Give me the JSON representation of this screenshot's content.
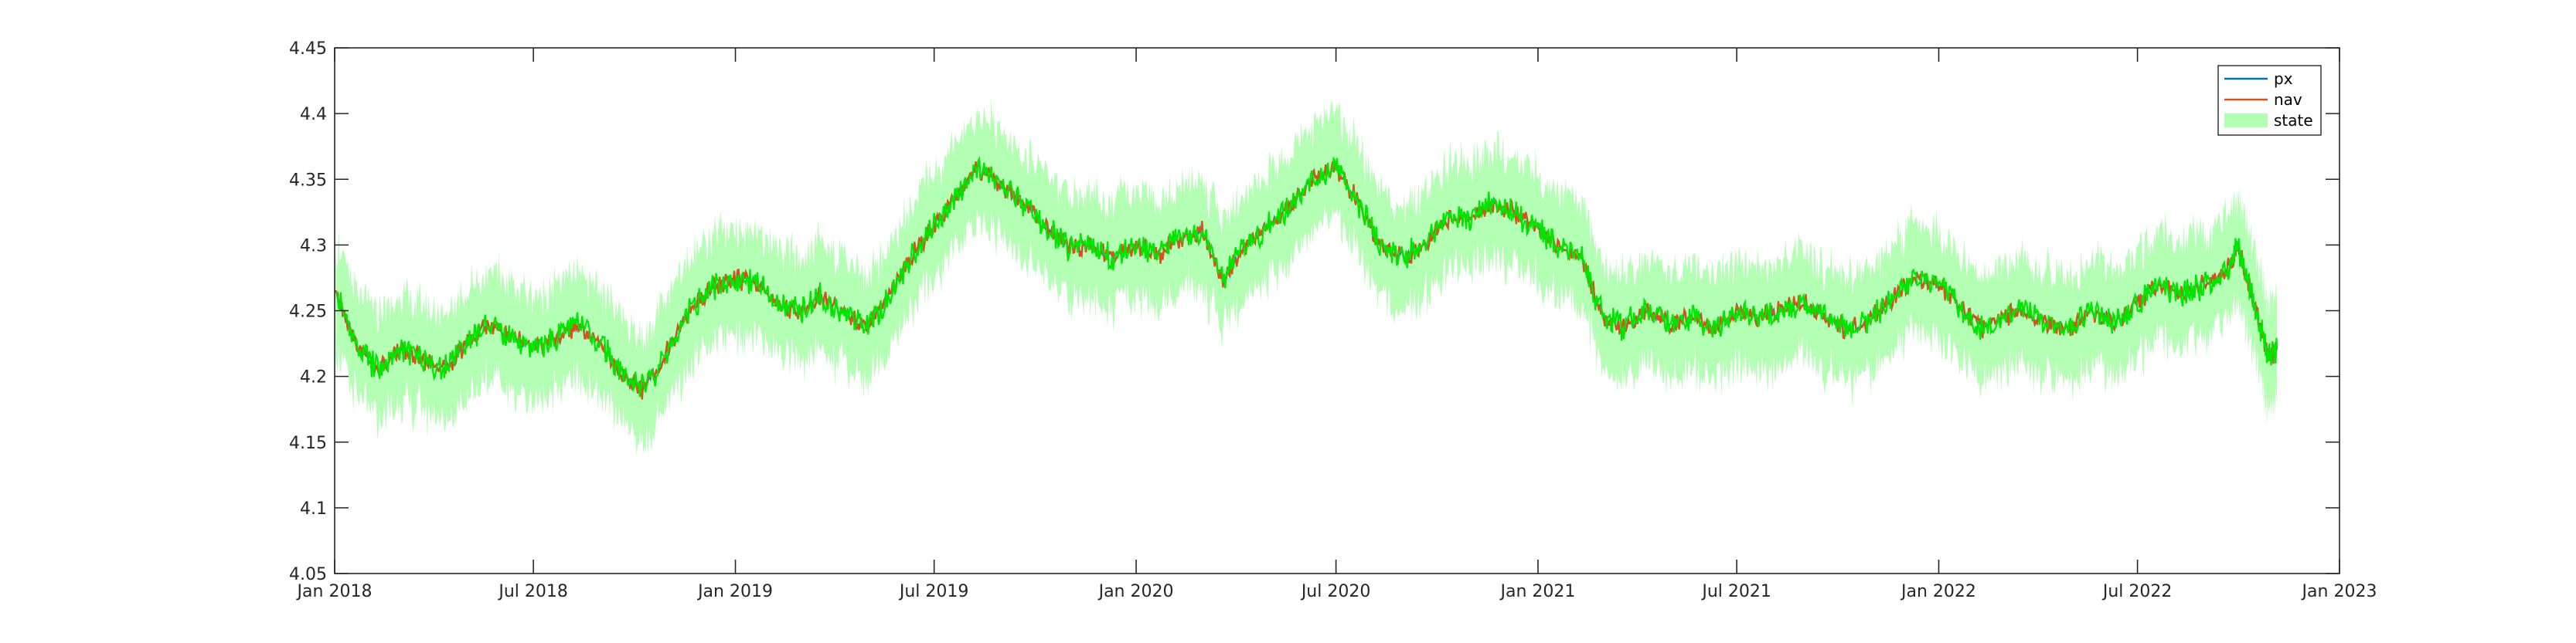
{
  "chart_data": {
    "type": "line",
    "title": "",
    "xlabel": "",
    "ylabel": "",
    "xlim": [
      "2018-01-01",
      "2023-01-01"
    ],
    "ylim": [
      4.05,
      4.45
    ],
    "grid": false,
    "legend_position": "top-right",
    "x_ticks": [
      "2018-01-01",
      "2018-07-01",
      "2019-01-01",
      "2019-07-01",
      "2020-01-01",
      "2020-07-01",
      "2021-01-01",
      "2021-07-01",
      "2022-01-01",
      "2022-07-01",
      "2023-01-01"
    ],
    "x_tick_labels": [
      "Jan 2018",
      "Jul 2018",
      "Jan 2019",
      "Jul 2019",
      "Jan 2020",
      "Jul 2020",
      "Jan 2021",
      "Jul 2021",
      "Jan 2022",
      "Jul 2022",
      "Jan 2023"
    ],
    "y_ticks": [
      4.05,
      4.1,
      4.15,
      4.2,
      4.25,
      4.3,
      4.35,
      4.4,
      4.45
    ],
    "y_tick_labels": [
      "4.05",
      "4.1",
      "4.15",
      "4.2",
      "4.25",
      "4.3",
      "4.35",
      "4.4",
      "4.45"
    ],
    "series": [
      {
        "name": "px",
        "kind": "line",
        "color": "#0072BD"
      },
      {
        "name": "nav",
        "kind": "line",
        "color": "#D95319"
      },
      {
        "name": "state",
        "kind": "line+band",
        "color": "#00E600",
        "band_color": "#B3FFB3",
        "band_halfwidth": 0.04
      }
    ],
    "x": [
      "2018-01-02",
      "2018-01-20",
      "2018-02-10",
      "2018-03-01",
      "2018-03-20",
      "2018-04-10",
      "2018-05-01",
      "2018-05-20",
      "2018-06-10",
      "2018-07-01",
      "2018-07-20",
      "2018-08-10",
      "2018-09-01",
      "2018-09-20",
      "2018-10-10",
      "2018-11-01",
      "2018-11-20",
      "2018-12-10",
      "2019-01-01",
      "2019-01-20",
      "2019-02-10",
      "2019-03-01",
      "2019-03-20",
      "2019-04-10",
      "2019-05-01",
      "2019-05-20",
      "2019-06-10",
      "2019-07-01",
      "2019-07-20",
      "2019-08-10",
      "2019-09-01",
      "2019-09-20",
      "2019-10-10",
      "2019-11-01",
      "2019-11-20",
      "2019-12-10",
      "2020-01-01",
      "2020-01-20",
      "2020-02-10",
      "2020-03-01",
      "2020-03-20",
      "2020-04-10",
      "2020-05-01",
      "2020-05-20",
      "2020-06-10",
      "2020-07-01",
      "2020-07-20",
      "2020-08-10",
      "2020-09-01",
      "2020-09-20",
      "2020-10-10",
      "2020-11-01",
      "2020-11-20",
      "2020-12-10",
      "2021-01-01",
      "2021-01-20",
      "2021-02-10",
      "2021-03-01",
      "2021-03-20",
      "2021-04-10",
      "2021-05-01",
      "2021-05-20",
      "2021-06-10",
      "2021-07-01",
      "2021-07-20",
      "2021-08-10",
      "2021-09-01",
      "2021-09-20",
      "2021-10-10",
      "2021-11-01",
      "2021-11-20",
      "2021-12-10",
      "2022-01-01",
      "2022-01-20",
      "2022-02-10",
      "2022-03-01",
      "2022-03-20",
      "2022-04-10",
      "2022-05-01",
      "2022-05-20",
      "2022-06-10",
      "2022-07-01",
      "2022-07-20",
      "2022-08-10",
      "2022-09-01",
      "2022-09-20",
      "2022-10-01",
      "2022-10-10",
      "2022-10-20",
      "2022-10-28",
      "2022-11-05"
    ],
    "values": [
      4.262,
      4.225,
      4.205,
      4.22,
      4.215,
      4.205,
      4.225,
      4.24,
      4.23,
      4.222,
      4.228,
      4.24,
      4.225,
      4.2,
      4.19,
      4.22,
      4.25,
      4.268,
      4.275,
      4.27,
      4.255,
      4.25,
      4.262,
      4.248,
      4.238,
      4.26,
      4.29,
      4.315,
      4.335,
      4.36,
      4.345,
      4.33,
      4.315,
      4.298,
      4.3,
      4.29,
      4.3,
      4.292,
      4.305,
      4.31,
      4.275,
      4.3,
      4.315,
      4.33,
      4.35,
      4.36,
      4.335,
      4.3,
      4.29,
      4.3,
      4.32,
      4.322,
      4.332,
      4.325,
      4.312,
      4.3,
      4.29,
      4.245,
      4.238,
      4.25,
      4.24,
      4.245,
      4.235,
      4.25,
      4.245,
      4.25,
      4.255,
      4.245,
      4.235,
      4.245,
      4.26,
      4.275,
      4.27,
      4.255,
      4.235,
      4.245,
      4.25,
      4.24,
      4.235,
      4.25,
      4.24,
      4.255,
      4.27,
      4.262,
      4.27,
      4.28,
      4.3,
      4.27,
      4.24,
      4.215,
      4.22
    ]
  }
}
